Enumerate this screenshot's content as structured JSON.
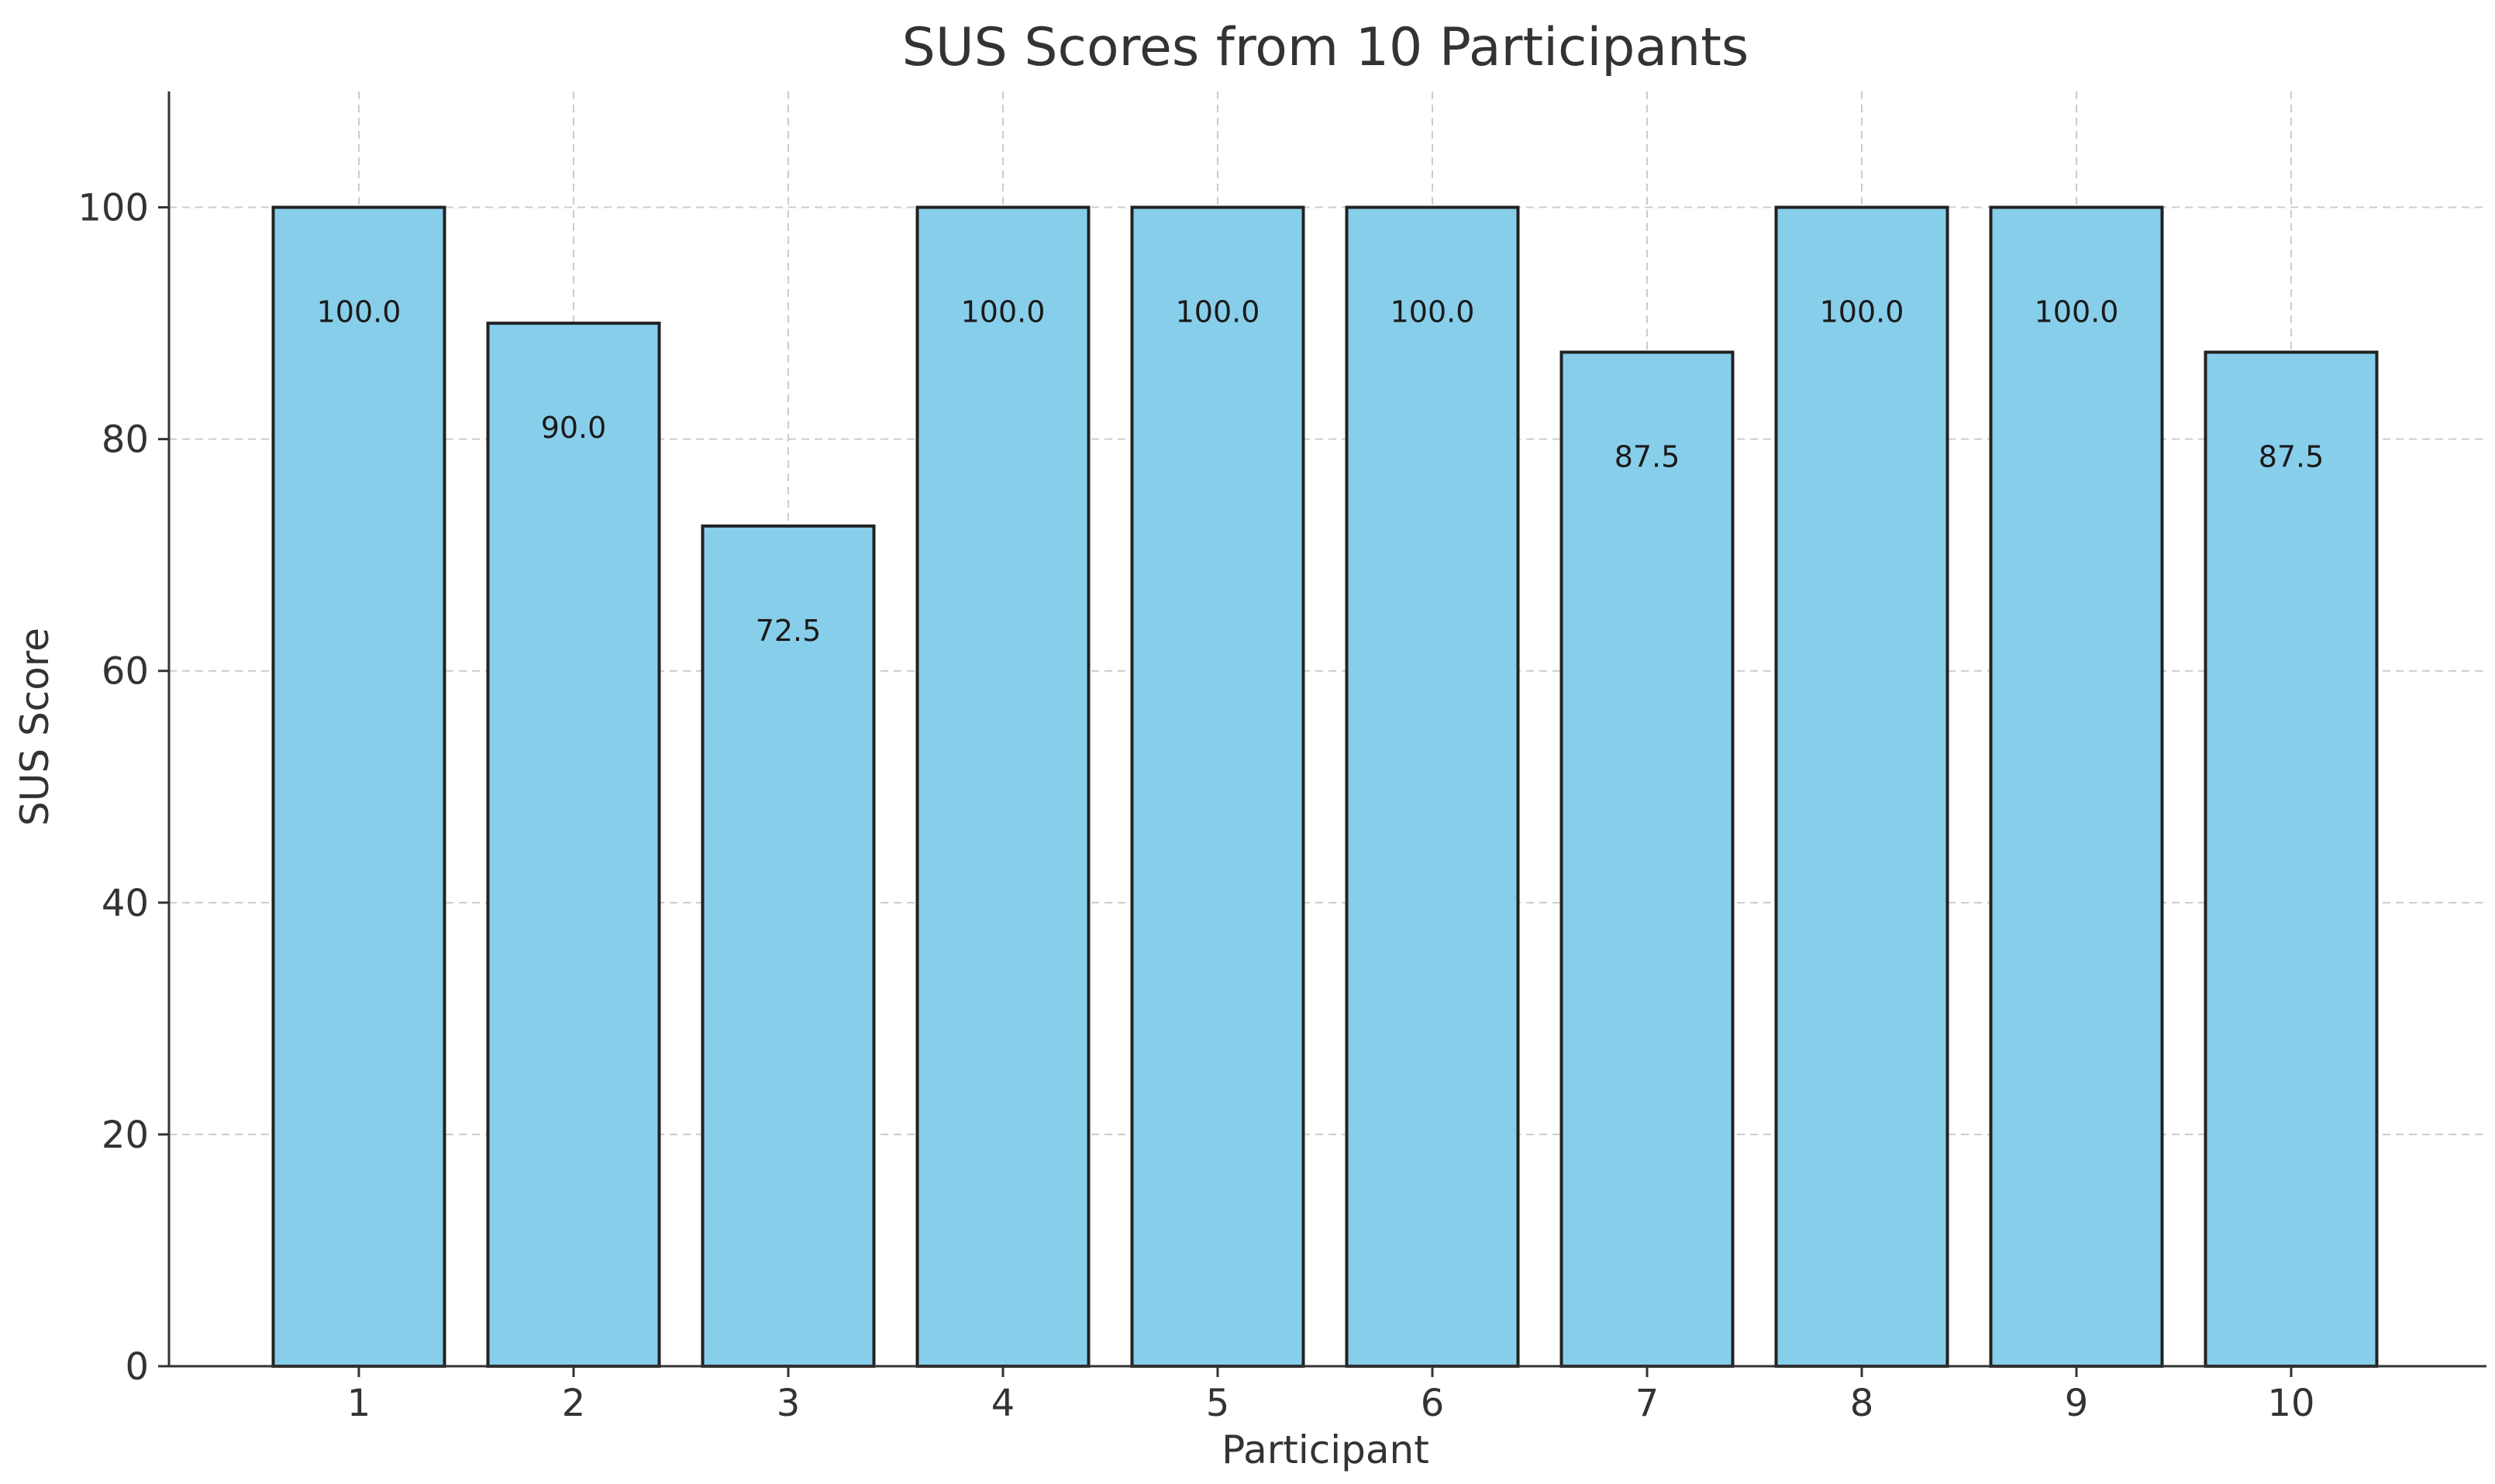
{
  "chart_data": {
    "type": "bar",
    "title": "SUS Scores from 10 Participants",
    "xlabel": "Participant",
    "ylabel": "SUS Score",
    "categories": [
      "1",
      "2",
      "3",
      "4",
      "5",
      "6",
      "7",
      "8",
      "9",
      "10"
    ],
    "values": [
      100.0,
      90.0,
      72.5,
      100.0,
      100.0,
      100.0,
      87.5,
      100.0,
      100.0,
      87.5
    ],
    "value_labels": [
      "100.0",
      "90.0",
      "72.5",
      "100.0",
      "100.0",
      "100.0",
      "87.5",
      "100.0",
      "100.0",
      "87.5"
    ],
    "ylim": [
      0,
      110
    ],
    "yticks": [
      "0",
      "20",
      "40",
      "60",
      "80",
      "100"
    ],
    "grid": true,
    "bar_color": "#87CEEB",
    "bar_edge_color": "#222222"
  }
}
